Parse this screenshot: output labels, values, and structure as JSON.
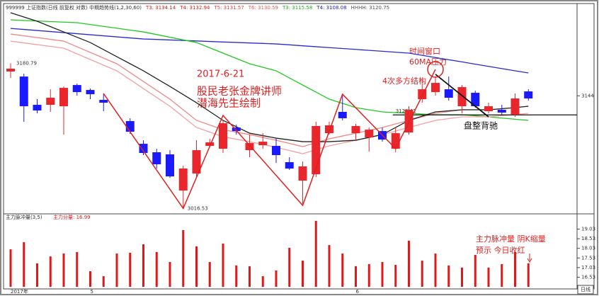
{
  "chart_data": [
    {
      "type": "candlestick",
      "header": "999999 上证指数(日线 前复权 对数) 中期趋势线(1,2,30,60)",
      "header_items": [
        {
          "label": "T3: 3134.14",
          "color": "#e02020"
        },
        {
          "label": "T4: 3132.94",
          "color": "#e02020"
        },
        {
          "label": "T5: 3131.57",
          "color": "#e04040"
        },
        {
          "label": "T6: 3130.59",
          "color": "#e06060"
        },
        {
          "label": "T3: 3115.58",
          "color": "#20b020"
        },
        {
          "label": "T4: 3108.08",
          "color": "#2020d0"
        },
        {
          "label": "HHHH: 3120.75",
          "color": "#555555"
        }
      ],
      "categories": [
        "2017年",
        null,
        null,
        null,
        null,
        null,
        "5",
        null,
        null,
        null,
        null,
        null,
        null,
        null,
        null,
        null,
        null,
        null,
        null,
        null,
        null,
        null,
        null,
        null,
        null,
        null,
        "6",
        null,
        null,
        null,
        null,
        null,
        null,
        null,
        null,
        null,
        null,
        null,
        null,
        null
      ],
      "open": [
        3171.5,
        3165.8,
        3133.8,
        3133.8,
        3132.2,
        3156.2,
        3150.6,
        3139.4,
        null,
        3115.4,
        3089.7,
        3080.1,
        3077.7,
        3036.8,
        3056.1,
        3087.3,
        3084.1,
        3108.1,
        3082.5,
        3088.1,
        3087.3,
        3068.9,
        3048.0,
        3055.3,
        3101.7,
        3125.8,
        3101.7,
        3096.9,
        3104.1,
        3084.1,
        3102.5,
        3140.2,
        3148.2,
        3151.4,
        3132.2,
        3147.4,
        3126.6,
        3128.2,
        3122.6,
        3149.0
      ],
      "high": [
        3180.79,
        3169.1,
        3140.2,
        3151.4,
        3154.6,
        3157.8,
        3152.2,
        3146.6,
        null,
        3118.6,
        3093.7,
        3084.1,
        3082.5,
        3064.9,
        3093.7,
        3095.3,
        3116.2,
        3111.4,
        3100.1,
        3101.7,
        3095.3,
        3074.5,
        3069.7,
        3114.6,
        3114.6,
        3144.2,
        3112.2,
        3108.1,
        3108.1,
        3108.1,
        3132.2,
        3162.6,
        3165.8,
        3165.8,
        3156.2,
        3149.8,
        3136.2,
        3133.8,
        3146.6,
        3151.4
      ],
      "low": [
        3164.2,
        3114.6,
        3124.2,
        3125.8,
        3100.1,
        3144.2,
        3140.2,
        3126.6,
        null,
        3100.9,
        3076.9,
        3061.7,
        3051.2,
        3016.53,
        3052.0,
        3085.7,
        3079.3,
        3100.1,
        3074.5,
        3084.1,
        3068.1,
        3060.1,
        3021.6,
        3052.0,
        3100.1,
        3116.2,
        3093.7,
        3080.9,
        3092.1,
        3080.1,
        3100.1,
        3136.2,
        3144.2,
        3138.6,
        3124.2,
        3130.6,
        3124.2,
        3122.6,
        3120.2,
        3138.6
      ],
      "close": [
        3174.7,
        3132.2,
        3127.4,
        3141.8,
        3153.0,
        3148.2,
        3145.8,
        3136.2,
        null,
        3103.3,
        3079.3,
        3066.5,
        3052.8,
        3061.7,
        3082.5,
        3091.3,
        3113.0,
        3104.1,
        3090.5,
        3092.1,
        3076.9,
        3061.7,
        3064.1,
        3109.8,
        3110.6,
        3118.6,
        3109.8,
        3105.7,
        3094.5,
        3101.7,
        3128.2,
        3151.4,
        3158.6,
        3141.8,
        3153.8,
        3132.2,
        3132.2,
        3125.0,
        3141.0,
        3141.0
      ],
      "up_color": "#e8262b",
      "down_color": "#1a1aff",
      "ylim": [
        3012,
        3238
      ],
      "yticks": [
        3144
      ],
      "series": [
        {
          "color": "#2a2ad0",
          "values": [
            3220.3,
            3219.1,
            3217.9,
            3216.7,
            3215.5,
            3214.3,
            3213.1,
            3211.9,
            3210.7,
            3209.5,
            3208.3,
            3207.8,
            3207.2,
            3206.6,
            3206.1,
            3205.5,
            3204.9,
            3204.4,
            3203.8,
            3203.3,
            3202.7,
            3201.7,
            3200.6,
            3199.6,
            3198.5,
            3197.5,
            3196.5,
            3195.4,
            3194.4,
            3193.3,
            3192.3,
            3189.8,
            3187.3,
            3184.8,
            3182.4,
            3179.8,
            3177.3,
            3174.8,
            3172.3,
            3169.9
          ]
        },
        {
          "color": "#22c822",
          "values": [
            3230.0,
            3229.3,
            3228.7,
            3228.0,
            3227.4,
            3226.8,
            3224.7,
            3222.6,
            3220.5,
            3218.4,
            3216.3,
            3213.3,
            3210.3,
            3207.3,
            3204.3,
            3198.3,
            3192.3,
            3186.3,
            3180.3,
            3176.3,
            3172.3,
            3164.2,
            3156.2,
            3148.2,
            3140.2,
            3135.4,
            3130.6,
            3128.2,
            3125.8,
            3125.0,
            3124.2,
            3123.4,
            3122.6,
            3122.6,
            3122.6,
            3121.4,
            3120.2,
            3118.8,
            3117.5,
            3116.2
          ]
        },
        {
          "color": "#f08888",
          "values": [
            3213.9,
            3211.9,
            3209.9,
            3207.9,
            3205.9,
            3199.5,
            3193.1,
            3186.7,
            3180.3,
            3170.3,
            3160.2,
            3150.2,
            3140.2,
            3128.2,
            3116.2,
            3111.0,
            3105.7,
            3102.9,
            3100.1,
            3096.9,
            3093.7,
            3090.1,
            3086.5,
            3090.9,
            3095.3,
            3098.5,
            3101.7,
            3104.9,
            3108.1,
            3112.2,
            3116.2,
            3120.2,
            3124.2,
            3126.2,
            3128.2,
            3128.2,
            3128.2,
            3129.5,
            3130.8,
            3132.2
          ]
        },
        {
          "color": "#f4a0a0",
          "values": [
            3205.9,
            3203.9,
            3201.9,
            3199.9,
            3197.9,
            3191.5,
            3185.1,
            3178.7,
            3172.3,
            3162.3,
            3152.2,
            3142.2,
            3132.2,
            3120.2,
            3108.2,
            3103.0,
            3097.7,
            3094.9,
            3092.1,
            3088.9,
            3085.7,
            3082.1,
            3078.5,
            3082.9,
            3087.3,
            3090.5,
            3093.7,
            3096.9,
            3100.1,
            3104.2,
            3108.2,
            3112.2,
            3116.2,
            3118.2,
            3120.2,
            3120.2,
            3120.2,
            3121.5,
            3122.8,
            3124.2
          ]
        },
        {
          "color": "#222222",
          "values": [
            3238.0,
            3233.2,
            3228.4,
            3222.3,
            3216.3,
            3210.3,
            3204.3,
            3196.3,
            3188.3,
            3180.3,
            3172.3,
            3163.4,
            3154.6,
            3145.4,
            3136.2,
            3126.2,
            3116.2,
            3109.0,
            3101.7,
            3098.9,
            3096.1,
            3094.1,
            3092.1,
            3092.1,
            3092.1,
            3092.9,
            3093.7,
            3096.9,
            3100.1,
            3108.1,
            3116.2,
            3121.0,
            3125.8,
            3127.0,
            3128.2,
            3128.2,
            3128.2,
            3129.4,
            3130.6,
            3132.2
          ]
        }
      ],
      "level": 3122.42,
      "zigzag": {
        "color": "#e02020",
        "x": [
          7,
          13,
          16,
          22,
          25,
          29,
          32
        ],
        "values": [
          3146.6,
          3016.53,
          3121.8,
          3020.0,
          3145.8,
          3084.1,
          3173.9
        ]
      },
      "divergence_line": {
        "color": "#111111",
        "x": [
          32,
          36
        ],
        "values": [
          3168.3,
          3120.2
        ]
      },
      "annotations": {
        "date": "2017-6-21",
        "author1": "股民老张金牌讲师",
        "author2": "潜海先生绘制",
        "structure": "4次多方结构",
        "window1": "时间窗口",
        "window2": "60MA压力",
        "divergence": "盘整背驰"
      }
    },
    {
      "type": "bar",
      "title": "主力脉冲量(3,5)",
      "legend_item": "主力分量: 16.99",
      "color": "#e01818",
      "values": [
        17.98,
        18.35,
        17.25,
        17.61,
        17.76,
        17.84,
        16.84,
        16.58,
        17.76,
        17.8,
        18.24,
        17.84,
        17.32,
        18.98,
        18.13,
        17.32,
        18.28,
        17.14,
        17.1,
        16.58,
        16.88,
        18.06,
        17.39,
        19.46,
        18.2,
        17.76,
        17.1,
        17.21,
        17.32,
        17.17,
        18.43,
        17.39,
        17.76,
        17.14,
        17.03,
        17.69,
        17.03,
        17.21,
        17.84,
        17.25
      ],
      "ylim": [
        16.03,
        19.53
      ],
      "yticks": [
        16.53,
        17.03,
        17.53,
        18.03,
        18.53,
        19.03
      ],
      "annotations": {
        "note1": "主力脉冲量  阴K缩量",
        "note2": "预示 今日收红"
      },
      "period": "日线"
    }
  ]
}
